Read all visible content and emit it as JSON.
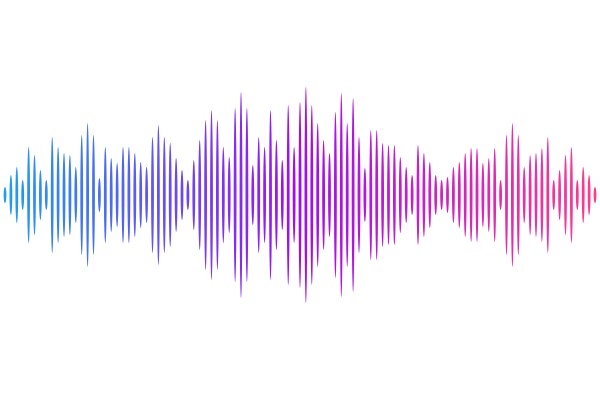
{
  "waveform": {
    "colors": {
      "start": "#1ea0f0",
      "middle": "#a00ef0",
      "end": "#ff3c8c"
    },
    "amplitudes": [
      8,
      20,
      28,
      15,
      48,
      40,
      25,
      15,
      58,
      48,
      42,
      40,
      28,
      60,
      72,
      60,
      17,
      48,
      37,
      32,
      48,
      48,
      42,
      33,
      28,
      58,
      70,
      58,
      52,
      37,
      25,
      15,
      35,
      55,
      75,
      85,
      75,
      48,
      38,
      87,
      103,
      87,
      30,
      58,
      48,
      85,
      55,
      35,
      90,
      48,
      93,
      108,
      90,
      72,
      55,
      42,
      83,
      102,
      72,
      97,
      58,
      27,
      65,
      65,
      52,
      50,
      50,
      38,
      28,
      20,
      50,
      42,
      33,
      20,
      15,
      18,
      28,
      33,
      42,
      47,
      47,
      32,
      37,
      47,
      15,
      60,
      72,
      60,
      28,
      40,
      42,
      47,
      58,
      15,
      25,
      40,
      48,
      15,
      28,
      20,
      8
    ]
  }
}
